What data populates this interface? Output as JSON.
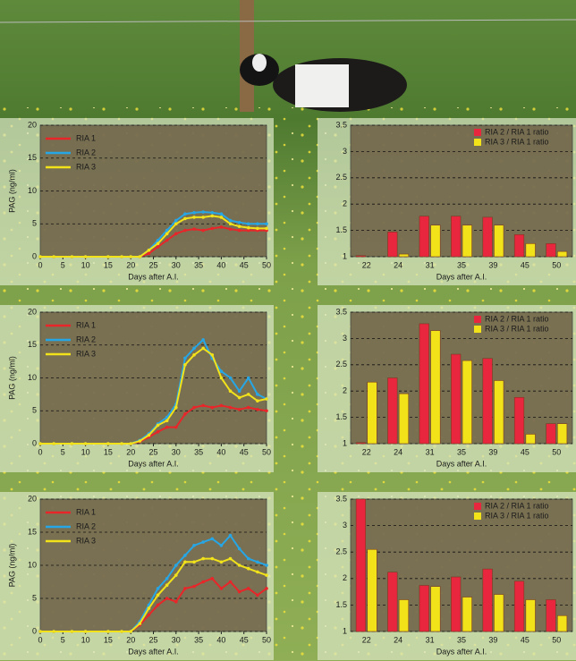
{
  "chart_data": [
    {
      "type": "line",
      "x_label": "Days after A.I.",
      "y_label": "PAG (ng/ml)",
      "x": [
        0,
        3,
        7,
        10,
        15,
        18,
        20,
        22,
        24,
        26,
        28,
        30,
        32,
        34,
        36,
        38,
        40,
        42,
        44,
        46,
        48,
        50
      ],
      "xlim": [
        0,
        50
      ],
      "xticks": [
        0,
        5,
        10,
        15,
        20,
        25,
        30,
        35,
        40,
        45,
        50
      ],
      "ylim": [
        0,
        20
      ],
      "yticks": [
        0,
        5,
        10,
        15,
        20
      ],
      "grid": true,
      "legend": "top-left",
      "series": [
        {
          "name": "RIA 1",
          "color": "#e8262a",
          "values": [
            0,
            0,
            0,
            0,
            0,
            0,
            0,
            0,
            0.5,
            1.5,
            2.5,
            3.5,
            4,
            4.2,
            4,
            4.3,
            4.5,
            4.2,
            4,
            4,
            4,
            4
          ]
        },
        {
          "name": "RIA 2",
          "color": "#27a6e6",
          "values": [
            0,
            0,
            0,
            0,
            0,
            0,
            0,
            0,
            1,
            2.5,
            4,
            5.5,
            6.5,
            6.7,
            6.8,
            6.7,
            6.5,
            5.5,
            5.2,
            5,
            5,
            5
          ]
        },
        {
          "name": "RIA 3",
          "color": "#f2e21a",
          "values": [
            0,
            0,
            0,
            0,
            0,
            0,
            0,
            0,
            1,
            2,
            3.5,
            5,
            5.8,
            6,
            6,
            6.2,
            6,
            5,
            4.6,
            4.4,
            4.3,
            4.3
          ]
        }
      ]
    },
    {
      "type": "bar",
      "x_label": "Days after A.I.",
      "categories": [
        "22",
        "24",
        "31",
        "35",
        "39",
        "45",
        "50"
      ],
      "ylim": [
        1,
        3.5
      ],
      "yticks": [
        1,
        1.5,
        2,
        2.5,
        3,
        3.5
      ],
      "grid": true,
      "legend": "top-right",
      "series": [
        {
          "name": "RIA 2 / RIA 1 ratio",
          "color": "#e8263e",
          "values": [
            1.02,
            1.47,
            1.77,
            1.77,
            1.75,
            1.42,
            1.25
          ]
        },
        {
          "name": "RIA 3 / RIA 1 ratio",
          "color": "#f2e21a",
          "values": [
            1,
            1.05,
            1.6,
            1.6,
            1.6,
            1.25,
            1.1
          ]
        }
      ]
    },
    {
      "type": "line",
      "x_label": "Days after A.I.",
      "y_label": "PAG (ng/ml)",
      "x": [
        0,
        3,
        7,
        10,
        15,
        18,
        20,
        22,
        24,
        26,
        28,
        30,
        32,
        34,
        36,
        38,
        40,
        42,
        44,
        46,
        48,
        50
      ],
      "xlim": [
        0,
        50
      ],
      "xticks": [
        0,
        5,
        10,
        15,
        20,
        25,
        30,
        35,
        40,
        45,
        50
      ],
      "ylim": [
        0,
        20
      ],
      "yticks": [
        0,
        5,
        10,
        15,
        20
      ],
      "grid": true,
      "legend": "top-left",
      "series": [
        {
          "name": "RIA 1",
          "color": "#e8262a",
          "values": [
            0,
            0,
            0,
            0,
            0,
            0,
            0,
            0.3,
            1,
            1.8,
            2.5,
            2.5,
            4.5,
            5.5,
            5.8,
            5.5,
            5.8,
            5.5,
            5.2,
            5.5,
            5.2,
            5
          ]
        },
        {
          "name": "RIA 2",
          "color": "#27a6e6",
          "values": [
            0,
            0,
            0,
            0,
            0,
            0,
            0,
            0.5,
            1.5,
            3,
            4,
            6,
            13,
            14.5,
            15.8,
            13,
            11,
            10,
            8,
            10,
            7.5,
            6.8
          ]
        },
        {
          "name": "RIA 3",
          "color": "#f2e21a",
          "values": [
            0,
            0,
            0,
            0,
            0,
            0,
            0,
            0.4,
            1.3,
            2.8,
            3.5,
            5.5,
            12,
            13.5,
            14.5,
            13.5,
            10,
            8,
            7,
            7.5,
            6.5,
            6.8
          ]
        }
      ]
    },
    {
      "type": "bar",
      "x_label": "Days after A.I.",
      "categories": [
        "22",
        "24",
        "31",
        "35",
        "39",
        "45",
        "50"
      ],
      "ylim": [
        1,
        3.5
      ],
      "yticks": [
        1,
        1.5,
        2,
        2.5,
        3,
        3.5
      ],
      "grid": true,
      "legend": "top-right",
      "series": [
        {
          "name": "RIA 2 / RIA 1 ratio",
          "color": "#e8263e",
          "values": [
            1.02,
            2.25,
            3.28,
            2.7,
            2.62,
            1.88,
            1.38
          ]
        },
        {
          "name": "RIA 3 / RIA 1 ratio",
          "color": "#f2e21a",
          "values": [
            2.17,
            1.95,
            3.15,
            2.58,
            2.2,
            1.18,
            1.38
          ]
        }
      ]
    },
    {
      "type": "line",
      "x_label": "Days after A.I.",
      "y_label": "PAG (ng/ml)",
      "x": [
        0,
        3,
        7,
        10,
        15,
        18,
        20,
        22,
        24,
        26,
        28,
        30,
        32,
        34,
        36,
        38,
        40,
        42,
        44,
        46,
        48,
        50
      ],
      "xlim": [
        0,
        50
      ],
      "xticks": [
        0,
        5,
        10,
        15,
        20,
        25,
        30,
        35,
        40,
        45,
        50
      ],
      "ylim": [
        0,
        20
      ],
      "yticks": [
        0,
        5,
        10,
        15,
        20
      ],
      "grid": true,
      "legend": "top-left",
      "series": [
        {
          "name": "RIA 1",
          "color": "#e8262a",
          "values": [
            0,
            0,
            0,
            0,
            0,
            0,
            0,
            1,
            2.5,
            4,
            5,
            4.5,
            6.5,
            6.8,
            7.5,
            8,
            6.5,
            7.5,
            6,
            6.5,
            5.5,
            6.5
          ]
        },
        {
          "name": "RIA 2",
          "color": "#27a6e6",
          "values": [
            0,
            0,
            0,
            0,
            0,
            0,
            0,
            1.5,
            4,
            6.5,
            8,
            10,
            11.5,
            13,
            13.5,
            14,
            13,
            14.5,
            12.5,
            11,
            10.5,
            10
          ]
        },
        {
          "name": "RIA 3",
          "color": "#f2e21a",
          "values": [
            0,
            0,
            0,
            0,
            0,
            0,
            0,
            1.2,
            3.5,
            5.5,
            7,
            8.5,
            10.5,
            10.5,
            11,
            11,
            10.5,
            11,
            10,
            9.5,
            9,
            8.5
          ]
        }
      ]
    },
    {
      "type": "bar",
      "x_label": "Days after A.I.",
      "categories": [
        "22",
        "24",
        "31",
        "35",
        "39",
        "45",
        "50"
      ],
      "ylim": [
        1,
        3.5
      ],
      "yticks": [
        1,
        1.5,
        2,
        2.5,
        3,
        3.5
      ],
      "grid": true,
      "legend": "top-right",
      "series": [
        {
          "name": "RIA 2 / RIA 1 ratio",
          "color": "#e8263e",
          "values": [
            3.5,
            2.12,
            1.87,
            2.03,
            2.18,
            1.95,
            1.6
          ]
        },
        {
          "name": "RIA 3 / RIA 1 ratio",
          "color": "#f2e21a",
          "values": [
            2.55,
            1.6,
            1.85,
            1.65,
            1.7,
            1.6,
            1.3
          ]
        }
      ]
    }
  ]
}
